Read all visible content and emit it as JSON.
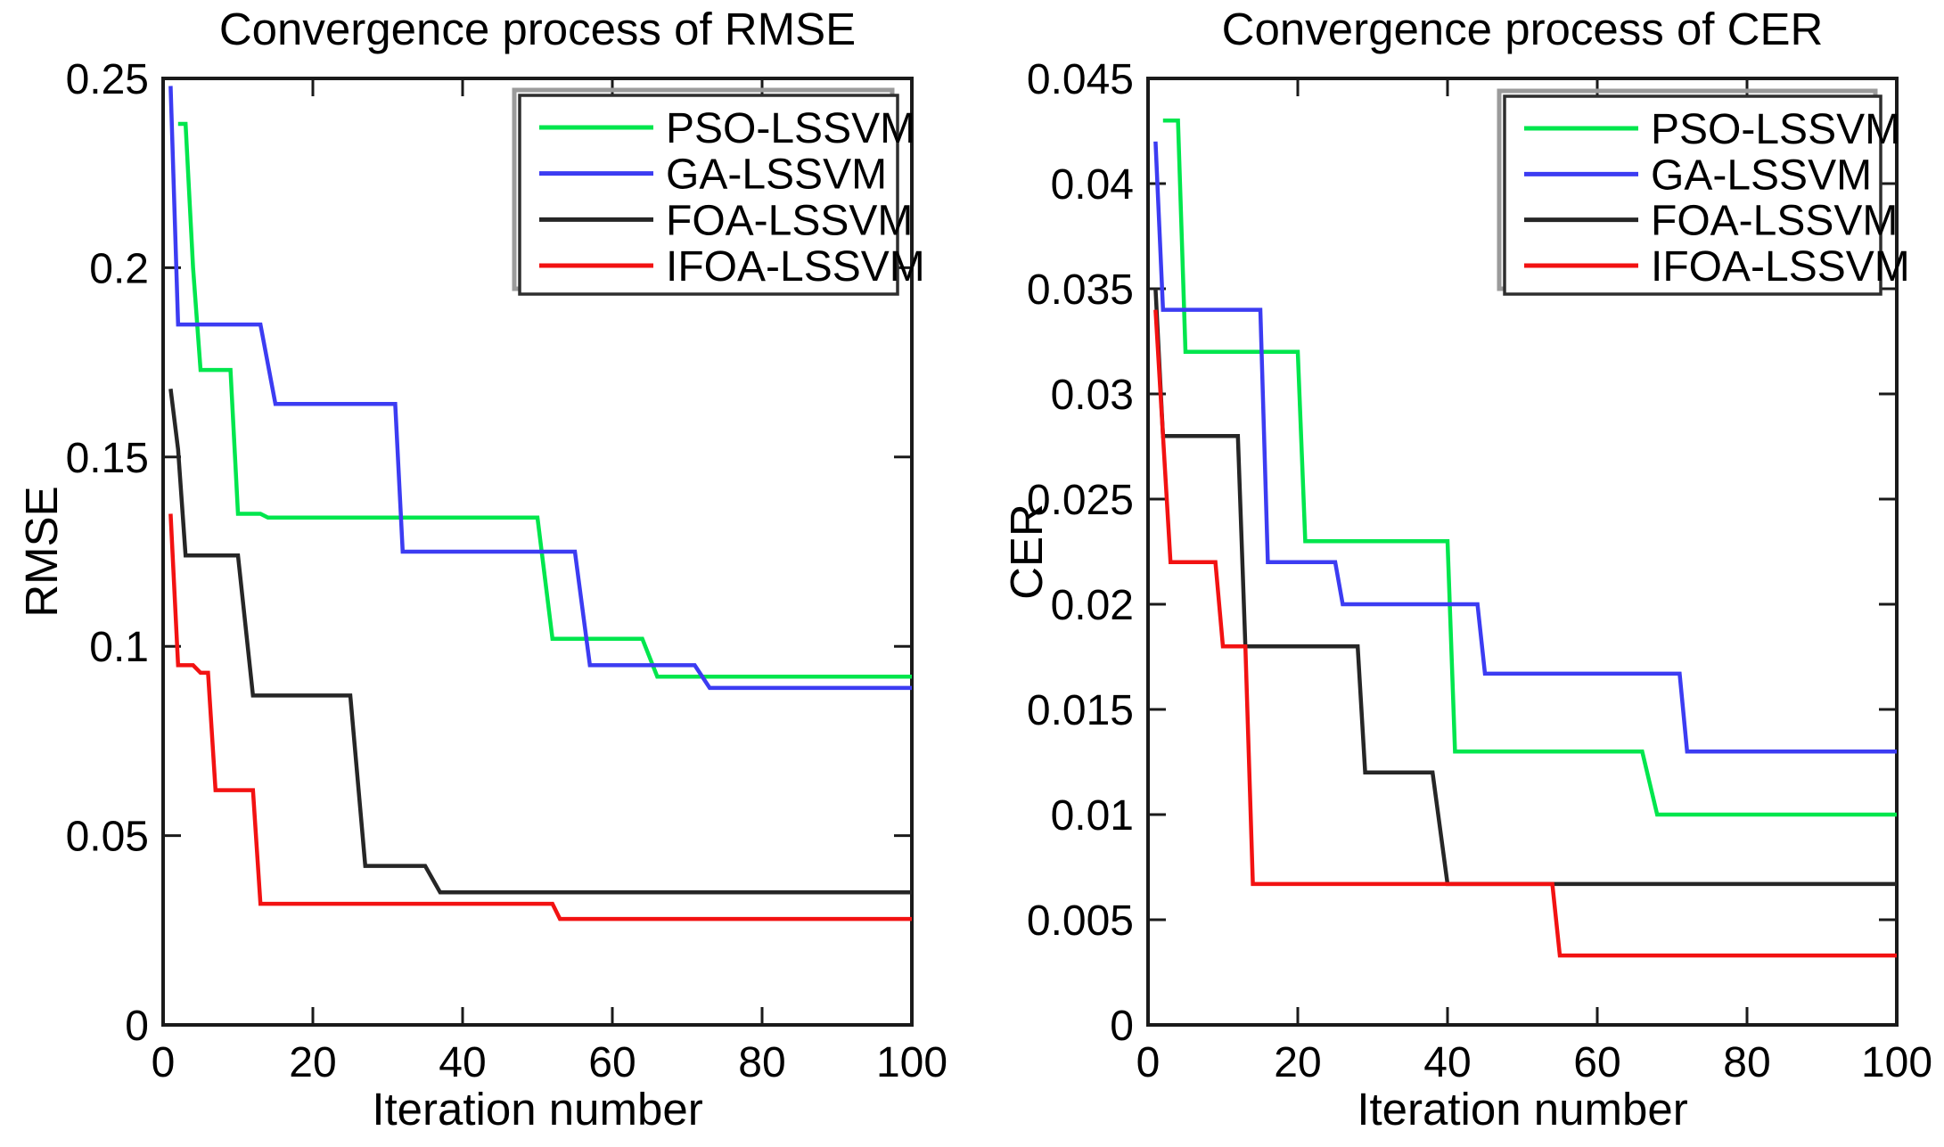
{
  "figure": {
    "name": "convergence-figure",
    "background": "#ffffff",
    "axis_color": "#1a1a1a",
    "text_color": "#000000"
  },
  "chart_data": [
    {
      "type": "line",
      "title": "Convergence process of RMSE",
      "xlabel": "Iteration number",
      "ylabel": "RMSE",
      "xlim": [
        0,
        100
      ],
      "ylim": [
        0,
        0.25
      ],
      "x_ticks": [
        0,
        20,
        40,
        60,
        80,
        100
      ],
      "x_tick_labels": [
        "0",
        "20",
        "40",
        "60",
        "80",
        "100"
      ],
      "y_ticks": [
        0,
        0.05,
        0.1,
        0.15,
        0.2,
        0.25
      ],
      "y_tick_labels": [
        "0",
        "0.05",
        "0.1",
        "0.15",
        "0.2",
        "0.25"
      ],
      "grid": false,
      "legend_position": "upper right inside",
      "series": [
        {
          "name": "PSO-LSSVM",
          "color": "#00e64d",
          "points": [
            [
              2,
              0.238
            ],
            [
              3,
              0.238
            ],
            [
              4,
              0.2
            ],
            [
              5,
              0.173
            ],
            [
              9,
              0.173
            ],
            [
              10,
              0.135
            ],
            [
              13,
              0.135
            ],
            [
              14,
              0.134
            ],
            [
              50,
              0.134
            ],
            [
              52,
              0.102
            ],
            [
              64,
              0.102
            ],
            [
              66,
              0.092
            ],
            [
              100,
              0.092
            ]
          ]
        },
        {
          "name": "GA-LSSVM",
          "color": "#3c3cf2",
          "points": [
            [
              1,
              0.248
            ],
            [
              2,
              0.185
            ],
            [
              13,
              0.185
            ],
            [
              15,
              0.164
            ],
            [
              31,
              0.164
            ],
            [
              32,
              0.125
            ],
            [
              55,
              0.125
            ],
            [
              57,
              0.095
            ],
            [
              71,
              0.095
            ],
            [
              73,
              0.089
            ],
            [
              100,
              0.089
            ]
          ]
        },
        {
          "name": "FOA-LSSVM",
          "color": "#262626",
          "points": [
            [
              1,
              0.168
            ],
            [
              2,
              0.152
            ],
            [
              3,
              0.124
            ],
            [
              10,
              0.124
            ],
            [
              12,
              0.087
            ],
            [
              25,
              0.087
            ],
            [
              27,
              0.042
            ],
            [
              35,
              0.042
            ],
            [
              37,
              0.035
            ],
            [
              100,
              0.035
            ]
          ]
        },
        {
          "name": "IFOA-LSSVM",
          "color": "#f21212",
          "points": [
            [
              1,
              0.135
            ],
            [
              2,
              0.095
            ],
            [
              4,
              0.095
            ],
            [
              5,
              0.093
            ],
            [
              6,
              0.093
            ],
            [
              7,
              0.062
            ],
            [
              12,
              0.062
            ],
            [
              13,
              0.032
            ],
            [
              52,
              0.032
            ],
            [
              53,
              0.028
            ],
            [
              100,
              0.028
            ]
          ]
        }
      ]
    },
    {
      "type": "line",
      "title": "Convergence process of CER",
      "xlabel": "Iteration number",
      "ylabel": "CER",
      "xlim": [
        0,
        100
      ],
      "ylim": [
        0,
        0.045
      ],
      "x_ticks": [
        0,
        20,
        40,
        60,
        80,
        100
      ],
      "x_tick_labels": [
        "0",
        "20",
        "40",
        "60",
        "80",
        "100"
      ],
      "y_ticks": [
        0,
        0.005,
        0.01,
        0.015,
        0.02,
        0.025,
        0.03,
        0.035,
        0.04,
        0.045
      ],
      "y_tick_labels": [
        "0",
        "0.005",
        "0.01",
        "0.015",
        "0.02",
        "0.025",
        "0.03",
        "0.035",
        "0.04",
        "0.045"
      ],
      "grid": false,
      "legend_position": "upper right inside",
      "series": [
        {
          "name": "PSO-LSSVM",
          "color": "#00e64d",
          "points": [
            [
              2,
              0.043
            ],
            [
              4,
              0.043
            ],
            [
              5,
              0.032
            ],
            [
              20,
              0.032
            ],
            [
              21,
              0.023
            ],
            [
              40,
              0.023
            ],
            [
              41,
              0.013
            ],
            [
              66,
              0.013
            ],
            [
              68,
              0.01
            ],
            [
              100,
              0.01
            ]
          ]
        },
        {
          "name": "GA-LSSVM",
          "color": "#3c3cf2",
          "points": [
            [
              1,
              0.042
            ],
            [
              2,
              0.034
            ],
            [
              15,
              0.034
            ],
            [
              16,
              0.022
            ],
            [
              25,
              0.022
            ],
            [
              26,
              0.02
            ],
            [
              44,
              0.02
            ],
            [
              45,
              0.0167
            ],
            [
              71,
              0.0167
            ],
            [
              72,
              0.013
            ],
            [
              100,
              0.013
            ]
          ]
        },
        {
          "name": "FOA-LSSVM",
          "color": "#262626",
          "points": [
            [
              1,
              0.035
            ],
            [
              2,
              0.028
            ],
            [
              12,
              0.028
            ],
            [
              13,
              0.018
            ],
            [
              28,
              0.018
            ],
            [
              29,
              0.012
            ],
            [
              38,
              0.012
            ],
            [
              40,
              0.0067
            ],
            [
              100,
              0.0067
            ]
          ]
        },
        {
          "name": "IFOA-LSSVM",
          "color": "#f21212",
          "points": [
            [
              1,
              0.034
            ],
            [
              3,
              0.022
            ],
            [
              9,
              0.022
            ],
            [
              10,
              0.018
            ],
            [
              13,
              0.018
            ],
            [
              14,
              0.0067
            ],
            [
              54,
              0.0067
            ],
            [
              55,
              0.0033
            ],
            [
              100,
              0.0033
            ]
          ]
        }
      ]
    }
  ]
}
